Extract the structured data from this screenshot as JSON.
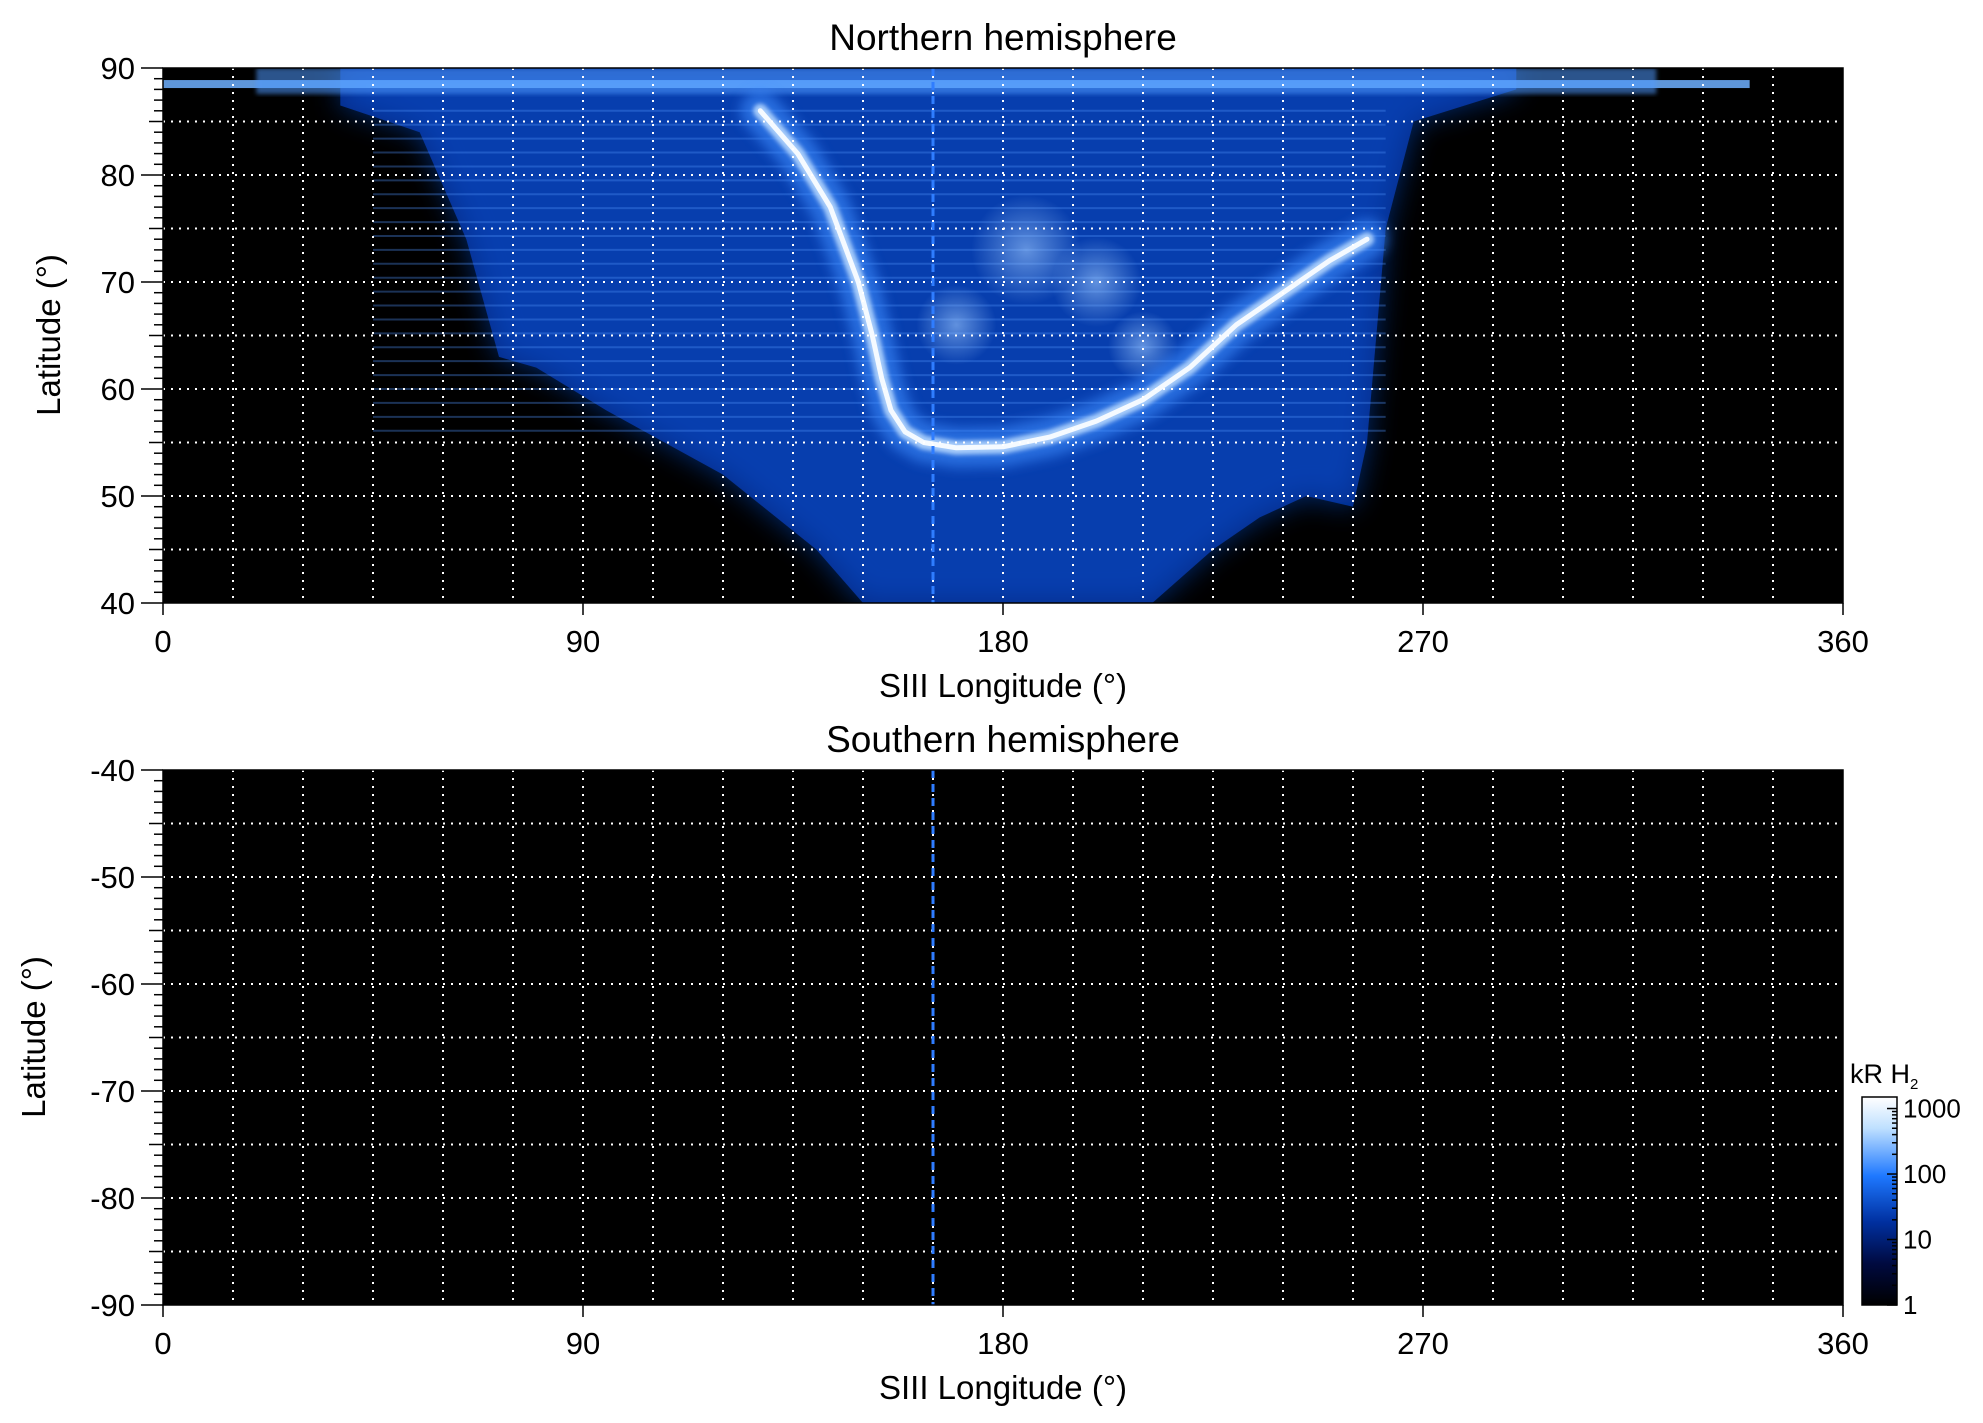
{
  "chart_data": [
    {
      "type": "heatmap",
      "title": "Northern hemisphere",
      "xlabel": "SIII Longitude (°)",
      "ylabel": "Latitude (°)",
      "xlim": [
        0,
        360
      ],
      "ylim": [
        40,
        90
      ],
      "xticks": [
        0,
        90,
        180,
        270,
        360
      ],
      "yticks": [
        40,
        50,
        60,
        70,
        80,
        90
      ],
      "x_gridlines_every": 15,
      "y_gridlines_every": 5,
      "grid": true,
      "background_color": "#000000",
      "emission_region": {
        "lon_extent": [
          38,
          260
        ],
        "boundary_low_lat": [
          [
            38,
            86.5
          ],
          [
            55,
            84
          ],
          [
            65,
            74
          ],
          [
            72,
            63
          ],
          [
            80,
            62
          ],
          [
            95,
            58
          ],
          [
            120,
            52
          ],
          [
            140,
            45
          ],
          [
            150,
            40
          ],
          [
            212,
            40
          ],
          [
            225,
            45
          ],
          [
            235,
            48
          ],
          [
            245,
            50
          ],
          [
            255,
            49
          ],
          [
            258,
            55
          ],
          [
            262,
            75
          ],
          [
            268,
            85
          ],
          [
            290,
            88
          ]
        ],
        "polar_fringe_lat": 88.5
      },
      "main_oval": {
        "points": [
          [
            128,
            86
          ],
          [
            136,
            82
          ],
          [
            143,
            77
          ],
          [
            149,
            70
          ],
          [
            152,
            65
          ],
          [
            154,
            61
          ],
          [
            156,
            58
          ],
          [
            159,
            56
          ],
          [
            163,
            55
          ],
          [
            170,
            54.5
          ],
          [
            180,
            54.6
          ],
          [
            190,
            55.5
          ],
          [
            200,
            57
          ],
          [
            210,
            59
          ],
          [
            220,
            62
          ],
          [
            230,
            66
          ],
          [
            240,
            69
          ],
          [
            250,
            72
          ],
          [
            258,
            74
          ]
        ],
        "peak_brightness_kR": 1000
      },
      "vertical_marker_lon": 165
    },
    {
      "type": "heatmap",
      "title": "Southern hemisphere",
      "xlabel": "SIII Longitude (°)",
      "ylabel": "Latitude (°)",
      "xlim": [
        0,
        360
      ],
      "ylim": [
        -90,
        -40
      ],
      "xticks": [
        0,
        90,
        180,
        270,
        360
      ],
      "yticks": [
        -40,
        -50,
        -60,
        -70,
        -80,
        -90
      ],
      "x_gridlines_every": 15,
      "y_gridlines_every": 5,
      "grid": true,
      "background_color": "#000000",
      "vertical_marker_lon": 165
    }
  ],
  "colorbar": {
    "label_main": "kR H",
    "label_sub": "2",
    "scale": "log",
    "ticks": [
      1,
      10,
      100,
      1000
    ],
    "range": [
      1,
      1500
    ],
    "colors": [
      "#000000",
      "#000a40",
      "#0030a0",
      "#1e78ff",
      "#bfe0ff",
      "#ffffff"
    ]
  },
  "colors": {
    "oval": "#f5faff",
    "glow": "#3c8cff",
    "marker": "#2f7dff"
  }
}
